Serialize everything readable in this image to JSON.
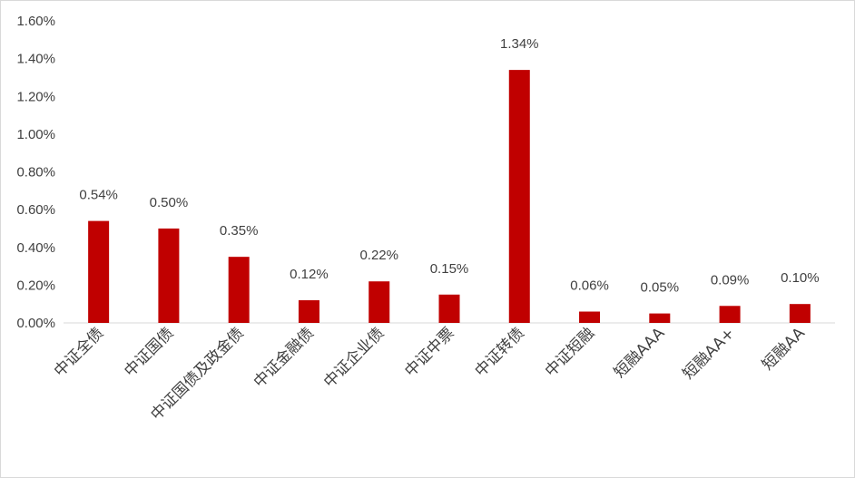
{
  "chart_data": {
    "type": "bar",
    "title": "",
    "xlabel": "",
    "ylabel": "",
    "categories": [
      "中证全债",
      "中证国债",
      "中证国债及政金债",
      "中证金融债",
      "中证企业债",
      "中证中票",
      "中证转债",
      "中证短融",
      "短融AAA",
      "短融AA+",
      "短融AA"
    ],
    "values": [
      0.54,
      0.5,
      0.35,
      0.12,
      0.22,
      0.15,
      1.34,
      0.06,
      0.05,
      0.09,
      0.1
    ],
    "data_labels": [
      "0.54%",
      "0.50%",
      "0.35%",
      "0.12%",
      "0.22%",
      "0.15%",
      "1.34%",
      "0.06%",
      "0.05%",
      "0.09%",
      "0.10%"
    ],
    "y_ticks": [
      0,
      0.2,
      0.4,
      0.6,
      0.8,
      1.0,
      1.2,
      1.4,
      1.6
    ],
    "y_tick_labels": [
      "0.00%",
      "0.20%",
      "0.40%",
      "0.60%",
      "0.80%",
      "1.00%",
      "1.20%",
      "1.40%",
      "1.60%"
    ],
    "ylim": [
      0,
      1.6
    ],
    "grid": false,
    "legend": "none",
    "colors": {
      "bar": "#c00000",
      "axis": "#d9d9d9",
      "text": "#404040"
    }
  }
}
